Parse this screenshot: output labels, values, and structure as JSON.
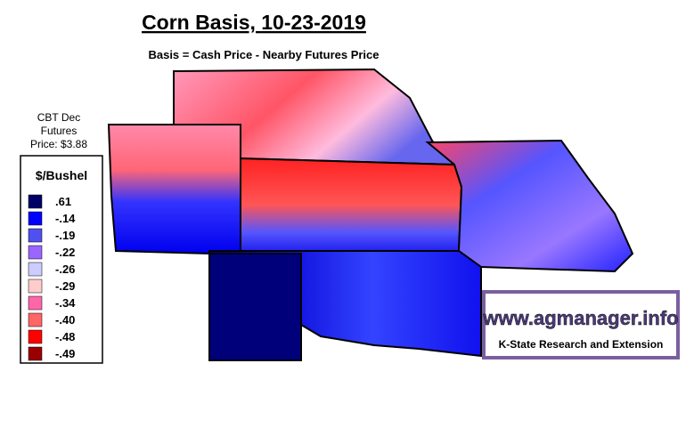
{
  "header": {
    "title": "Corn Basis, 10-23-2019",
    "subtitle": "Basis = Cash Price - Nearby Futures Price"
  },
  "futures_note": {
    "lines": [
      "CBT Dec",
      "Futures",
      "Price: $3.88"
    ]
  },
  "legend": {
    "title": "$/Bushel",
    "items": [
      {
        "label": ".61",
        "color": "#000066"
      },
      {
        "label": "-.14",
        "color": "#0000ff"
      },
      {
        "label": "-.19",
        "color": "#5050f0"
      },
      {
        "label": "-.22",
        "color": "#9966ff"
      },
      {
        "label": "-.26",
        "color": "#ccccff"
      },
      {
        "label": "-.29",
        "color": "#ffcccc"
      },
      {
        "label": "-.34",
        "color": "#ff66aa"
      },
      {
        "label": "-.40",
        "color": "#ff6666"
      },
      {
        "label": "-.48",
        "color": "#ff0000"
      },
      {
        "label": "-.49",
        "color": "#990000"
      }
    ]
  },
  "logo": {
    "url": "www.agmanager.info",
    "org": "K-State Research and Extension"
  }
}
